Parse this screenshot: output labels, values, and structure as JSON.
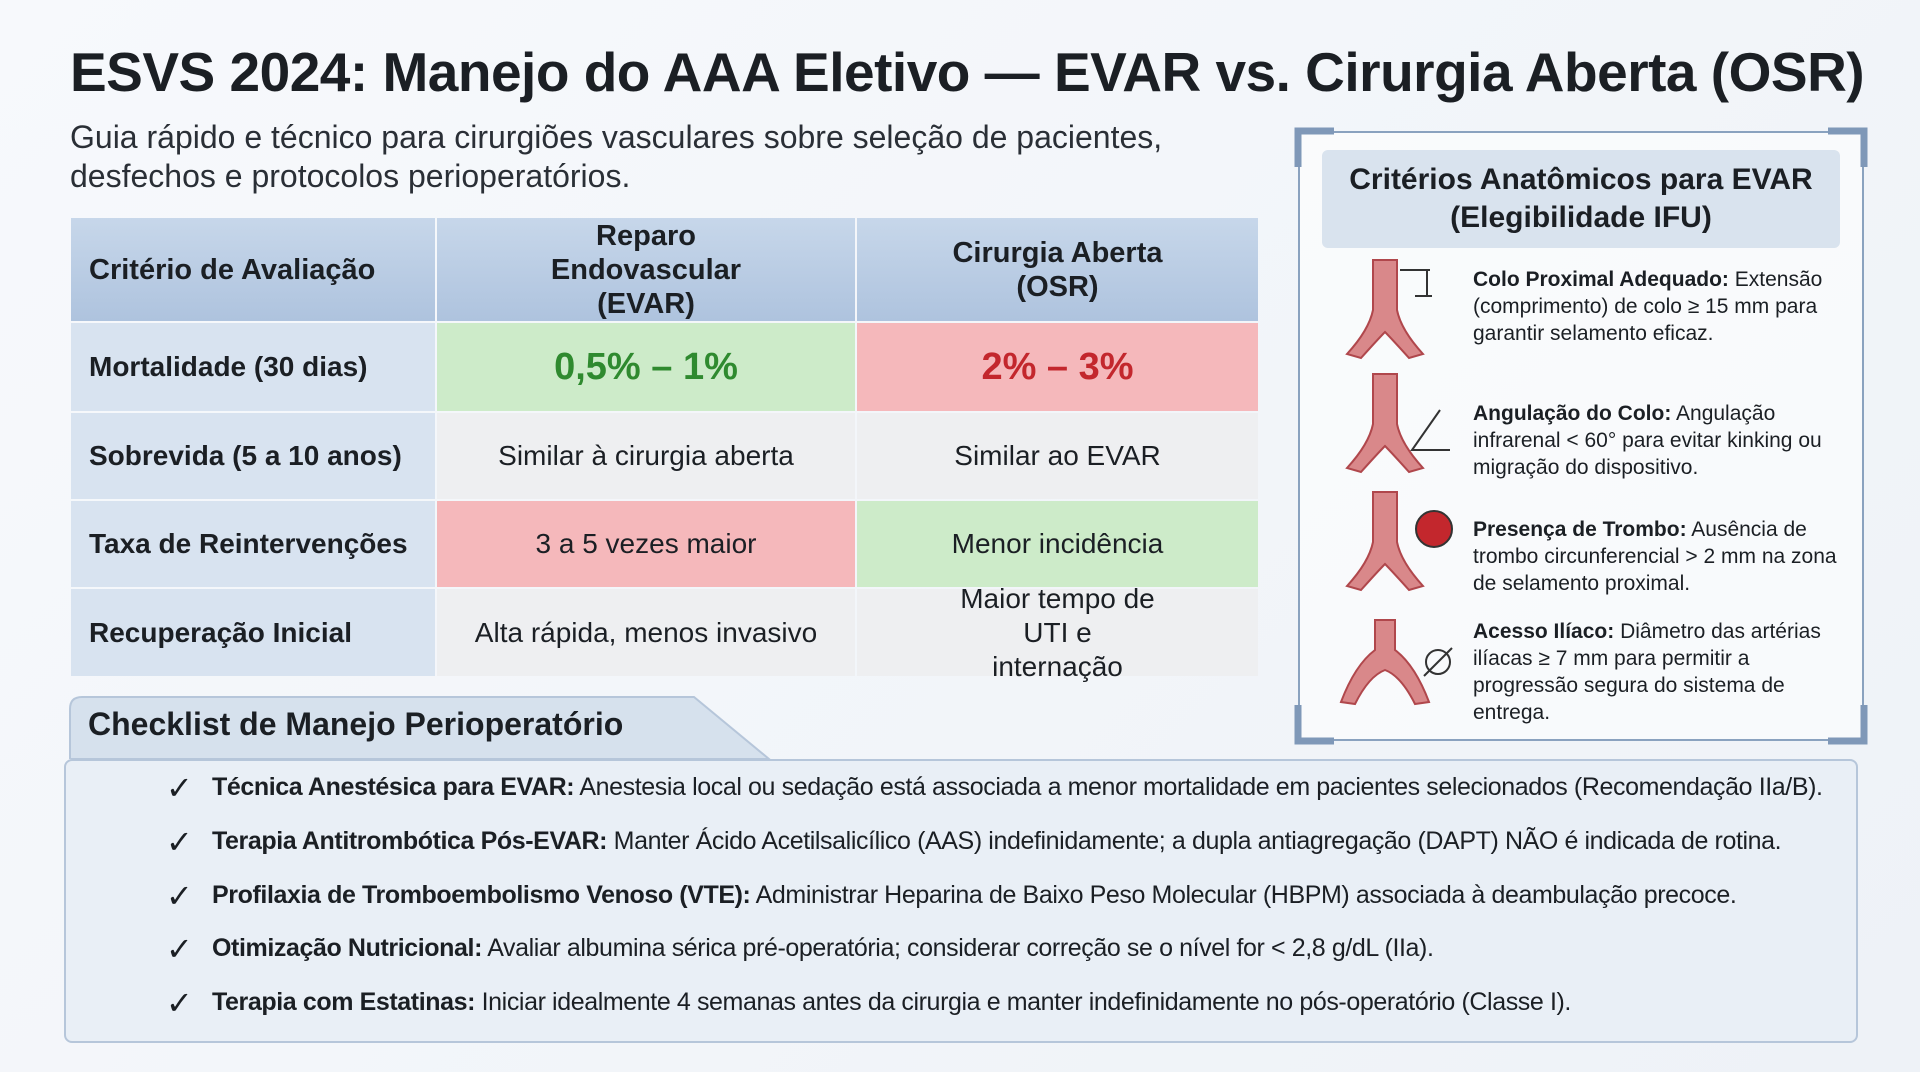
{
  "header": {
    "title": "ESVS 2024: Manejo do AAA Eletivo — EVAR vs. Cirurgia Aberta (OSR)",
    "subtitle": "Guia rápido e técnico para cirurgiões vasculares sobre seleção de pacientes, desfechos e protocolos perioperatórios."
  },
  "table": {
    "columns": [
      "Critério de Avaliação",
      "Reparo Endovascular (EVAR)",
      "Cirurgia Aberta (OSR)"
    ],
    "rows": [
      [
        "Mortalidade (30 dias)",
        "0,5% – 1%",
        "2% – 3%"
      ],
      [
        "Sobrevida (5 a 10 anos)",
        "Similar à cirurgia aberta",
        "Similar ao EVAR"
      ],
      [
        "Taxa de Reintervenções",
        "3 a 5 vezes maior",
        "Menor incidência"
      ],
      [
        "Recuperação Inicial",
        "Alta rápida, menos invasivo",
        "Maior tempo de UTI e internação"
      ]
    ]
  },
  "criteria": {
    "title": "Critérios Anatômicos para EVAR (Elegibilidade IFU)",
    "items": [
      {
        "label": "Colo Proximal Adequado:",
        "text": "Extensão (comprimento) de colo ≥ 15 mm para garantir selamento eficaz."
      },
      {
        "label": "Angulação do Colo:",
        "text": "Angulação infrarenal < 60° para evitar kinking ou migração do dispositivo."
      },
      {
        "label": "Presença de Trombo:",
        "text": "Ausência de trombo circunferencial > 2 mm na zona de selamento proximal."
      },
      {
        "label": "Acesso Ilíaco:",
        "text": "Diâmetro das artérias ilíacas ≥ 7 mm para permitir a progressão segura do sistema de entrega."
      }
    ]
  },
  "checklist": {
    "title": "Checklist de Manejo Perioperatório",
    "items": [
      {
        "label": "Técnica Anestésica para EVAR:",
        "text": "Anestesia local ou sedação está associada a menor mortalidade em pacientes selecionados (Recomendação IIa/B)."
      },
      {
        "label": "Terapia Antitrombótica Pós-EVAR:",
        "text": "Manter Ácido Acetilsalicílico (AAS) indefinidamente; a dupla antiagregação (DAPT) NÃO é indicada de rotina."
      },
      {
        "label": "Profilaxia de Tromboembolismo Venoso (VTE):",
        "text": "Administrar Heparina de Baixo Peso Molecular (HBPM) associada à deambulação precoce."
      },
      {
        "label": "Otimização Nutricional:",
        "text": "Avaliar albumina sérica pré-operatória; considerar correção se o nível for < 2,8 g/dL (IIa)."
      },
      {
        "label": "Terapia com Estatinas:",
        "text": "Iniciar idealmente 4 semanas antes da cirurgia e manter indefinidamente no pós-operatório (Classe I)."
      }
    ]
  }
}
